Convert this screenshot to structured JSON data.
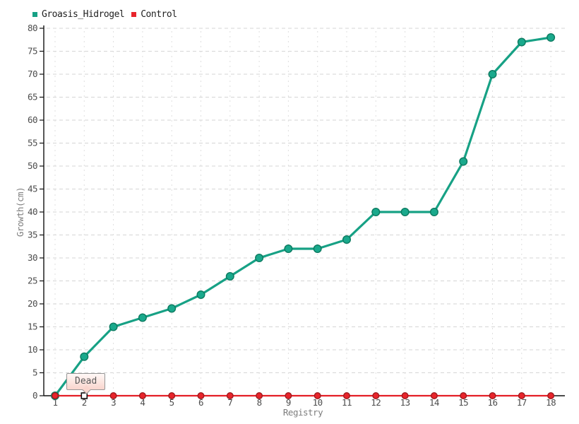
{
  "chart_data": {
    "type": "line",
    "title": "",
    "xlabel": "Registry",
    "ylabel": "Growth(cm)",
    "x": [
      1,
      2,
      3,
      4,
      5,
      6,
      7,
      8,
      9,
      10,
      11,
      12,
      13,
      14,
      15,
      16,
      17,
      18
    ],
    "ylim": [
      0,
      80
    ],
    "ytick_step": 5,
    "grid": true,
    "legend_position": "top-left",
    "background": "#ffffff",
    "series": [
      {
        "name": "Groasis_Hidrogel",
        "color": "#17a185",
        "marker_fill": "#1aa98c",
        "marker_stroke": "#0c7a60",
        "line_width": 3.2,
        "marker_radius": 5.3,
        "values": [
          0,
          8.5,
          15,
          17,
          19,
          22,
          26,
          30,
          32,
          32,
          34,
          40,
          40,
          40,
          51,
          70,
          77,
          78
        ]
      },
      {
        "name": "Control",
        "color": "#e41f26",
        "marker_fill": "#e8242b",
        "marker_stroke": "#9e1b1f",
        "line_width": 2.2,
        "marker_radius": 4.3,
        "values": [
          0,
          0,
          0,
          0,
          0,
          0,
          0,
          0,
          0,
          0,
          0,
          0,
          0,
          0,
          0,
          0,
          0,
          0
        ]
      }
    ],
    "annotation": {
      "label": "Dead",
      "series": "Control",
      "x": 2,
      "y": 0
    }
  },
  "colors": {
    "grid_horizontal": "#d5d5d5",
    "grid_vertical": "#dfdfdf",
    "axis": "#111111",
    "tick_text": "#4d4d4d",
    "axis_title_text": "#7d7d7d"
  }
}
